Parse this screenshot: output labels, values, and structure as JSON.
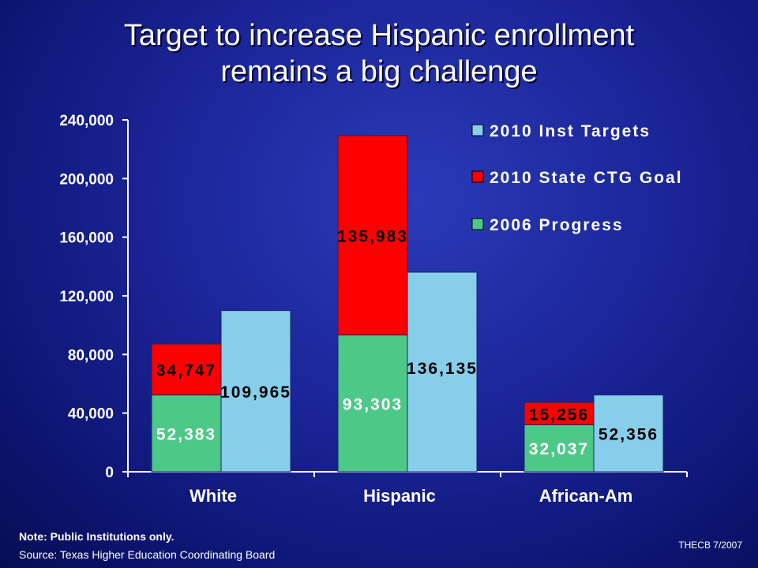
{
  "page": {
    "title_line1": "Target to increase Hispanic enrollment",
    "title_line2": "remains a big challenge",
    "note": "Note: Public Institutions only.",
    "source": "Source: Texas Higher Education Coordinating Board",
    "credit": "THECB 7/2007"
  },
  "colors": {
    "progress": "#4dc987",
    "ctg_goal": "#ff0000",
    "inst_targets": "#87ceeb",
    "axis": "#ffffff"
  },
  "chart_data": {
    "type": "bar",
    "title": "Target to increase Hispanic enrollment remains a big challenge",
    "categories": [
      "White",
      "Hispanic",
      "African-Am"
    ],
    "ylim": [
      0,
      240000
    ],
    "yticks": [
      0,
      40000,
      80000,
      120000,
      160000,
      200000,
      240000
    ],
    "ytick_labels": [
      "0",
      "40,000",
      "80,000",
      "120,000",
      "160,000",
      "200,000",
      "240,000"
    ],
    "grid": false,
    "legend_position": "top-right",
    "legend": [
      "2010 Inst Targets",
      "2010 State CTG Goal",
      "2006 Progress"
    ],
    "stacked_series": [
      {
        "name": "2006 Progress",
        "values": [
          52383,
          93303,
          32037
        ],
        "labels": [
          "52,383",
          "93,303",
          "32,037"
        ]
      },
      {
        "name": "2010 State CTG Goal",
        "values": [
          34747,
          135983,
          15256
        ],
        "labels": [
          "34,747",
          "135,983",
          "15,256"
        ]
      }
    ],
    "side_series": {
      "name": "2010 Inst Targets",
      "values": [
        109965,
        136135,
        52356
      ],
      "labels": [
        "109,965",
        "136,135",
        "52,356"
      ]
    }
  }
}
